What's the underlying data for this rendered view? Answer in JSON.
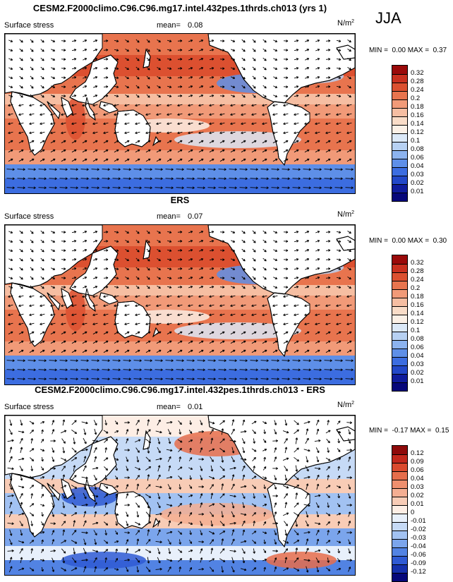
{
  "season": "JJA",
  "panels": [
    {
      "title": "CESM2.F2000climo.C96.C96.mg17.intel.432pes.1thrds.ch013 (yrs 1)",
      "variable": "Surface stress",
      "mean_label": "mean=",
      "mean_value": "0.08",
      "units_base": "N/m",
      "units_exp": "2",
      "min_label": "MIN =",
      "min_value": "0.00",
      "max_label": "MAX =",
      "max_value": "0.37",
      "levels": [
        "0.32",
        "0.28",
        "0.24",
        "0.2",
        "0.18",
        "0.16",
        "0.14",
        "0.12",
        "0.1",
        "0.08",
        "0.06",
        "0.04",
        "0.03",
        "0.02",
        "0.01"
      ],
      "colors": [
        "#9a0a0a",
        "#c9301f",
        "#dc5030",
        "#e8744e",
        "#f19a78",
        "#f6bea2",
        "#f9dcc7",
        "#fbf0e6",
        "#dce9f8",
        "#b7d1f3",
        "#8cb3ef",
        "#5e8fe8",
        "#3c6de0",
        "#2348c8",
        "#101c9c",
        "#07077a"
      ],
      "map_style": "model"
    },
    {
      "title": "ERS",
      "variable": "Surface stress",
      "mean_label": "mean=",
      "mean_value": "0.07",
      "units_base": "N/m",
      "units_exp": "2",
      "min_label": "MIN =",
      "min_value": "0.00",
      "max_label": "MAX =",
      "max_value": "0.30",
      "levels": [
        "0.32",
        "0.28",
        "0.24",
        "0.2",
        "0.18",
        "0.16",
        "0.14",
        "0.12",
        "0.1",
        "0.08",
        "0.06",
        "0.04",
        "0.03",
        "0.02",
        "0.01"
      ],
      "colors": [
        "#9a0a0a",
        "#c9301f",
        "#dc5030",
        "#e8744e",
        "#f19a78",
        "#f6bea2",
        "#f9dcc7",
        "#fbf0e6",
        "#dce9f8",
        "#b7d1f3",
        "#8cb3ef",
        "#5e8fe8",
        "#3c6de0",
        "#2348c8",
        "#101c9c",
        "#07077a"
      ],
      "map_style": "obs"
    },
    {
      "title": "CESM2.F2000climo.C96.C96.mg17.intel.432pes.1thrds.ch013 - ERS",
      "variable": "Surface stress",
      "mean_label": "mean=",
      "mean_value": "0.01",
      "units_base": "N/m",
      "units_exp": "2",
      "min_label": "MIN =",
      "min_value": "-0.17",
      "max_label": "MAX =",
      "max_value": "0.15",
      "levels": [
        "0.12",
        "0.09",
        "0.06",
        "0.04",
        "0.03",
        "0.02",
        "0.01",
        "0",
        "-0.01",
        "-0.02",
        "-0.03",
        "-0.04",
        "-0.06",
        "-0.09",
        "-0.12"
      ],
      "colors": [
        "#8e0a0a",
        "#c3281c",
        "#db4a2e",
        "#e66d4b",
        "#ef8f6e",
        "#f4ae92",
        "#f8ccb6",
        "#fdeee5",
        "#e8f0fb",
        "#c6daf6",
        "#a2c2f2",
        "#7ba5ec",
        "#5283e3",
        "#2f5ad3",
        "#1530ac",
        "#06087a"
      ],
      "map_style": "diff"
    }
  ]
}
